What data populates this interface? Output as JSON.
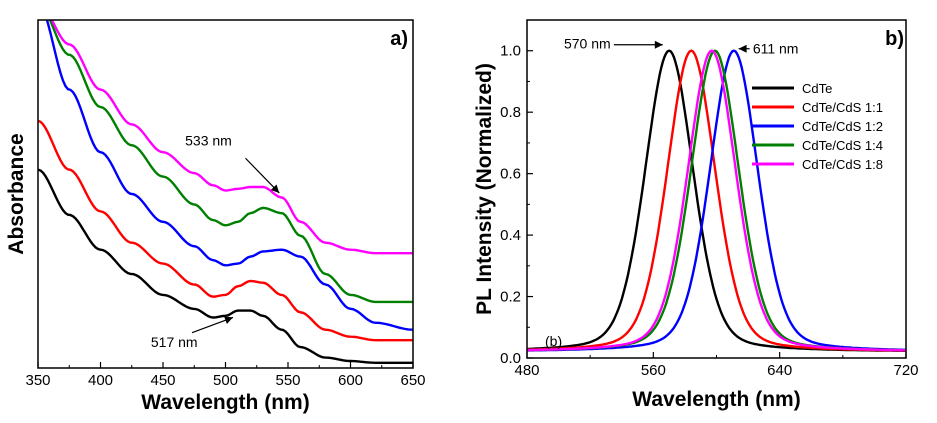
{
  "chart_data": [
    {
      "type": "line",
      "panel_label": "a)",
      "xlabel": "Wavelength (nm)",
      "ylabel": "Absorbance",
      "xlim": [
        350,
        650
      ],
      "ylim": [
        0,
        1
      ],
      "y_ticks_shown": false,
      "x_ticks": [
        350,
        400,
        450,
        500,
        550,
        600,
        650
      ],
      "x_tick_labels": [
        "350",
        "400",
        "450",
        "500",
        "550",
        "600",
        "650"
      ],
      "annotations": [
        {
          "text": "533 nm",
          "x": 533
        },
        {
          "text": "517 nm",
          "x": 517
        }
      ],
      "series": [
        {
          "name": "CdTe",
          "color": "#000000",
          "x": [
            350,
            375,
            400,
            425,
            450,
            475,
            490,
            500,
            510,
            520,
            530,
            545,
            560,
            580,
            600,
            620,
            650
          ],
          "values": [
            0.57,
            0.44,
            0.34,
            0.27,
            0.21,
            0.17,
            0.145,
            0.15,
            0.165,
            0.165,
            0.15,
            0.11,
            0.06,
            0.03,
            0.02,
            0.015,
            0.015
          ]
        },
        {
          "name": "CdTe/CdS 1:1",
          "color": "#ff0000",
          "x": [
            350,
            375,
            400,
            425,
            450,
            475,
            490,
            500,
            510,
            520,
            530,
            545,
            560,
            580,
            600,
            620,
            650
          ],
          "values": [
            0.71,
            0.57,
            0.45,
            0.36,
            0.3,
            0.24,
            0.205,
            0.21,
            0.235,
            0.25,
            0.245,
            0.21,
            0.16,
            0.11,
            0.09,
            0.08,
            0.08
          ]
        },
        {
          "name": "CdTe/CdS 1:2",
          "color": "#0000ff",
          "x": [
            350,
            375,
            400,
            425,
            450,
            475,
            490,
            500,
            510,
            520,
            530,
            545,
            560,
            580,
            600,
            620,
            650
          ],
          "values": [
            1.05,
            0.8,
            0.62,
            0.5,
            0.42,
            0.35,
            0.31,
            0.295,
            0.3,
            0.32,
            0.335,
            0.34,
            0.32,
            0.24,
            0.17,
            0.13,
            0.11
          ]
        },
        {
          "name": "CdTe/CdS 1:4",
          "color": "#008000",
          "x": [
            350,
            375,
            400,
            425,
            450,
            475,
            490,
            500,
            510,
            520,
            530,
            545,
            560,
            580,
            600,
            620,
            650
          ],
          "values": [
            1.05,
            0.9,
            0.75,
            0.64,
            0.55,
            0.47,
            0.425,
            0.41,
            0.42,
            0.445,
            0.46,
            0.445,
            0.38,
            0.27,
            0.21,
            0.19,
            0.19
          ]
        },
        {
          "name": "CdTe/CdS 1:8",
          "color": "#ff00ff",
          "x": [
            350,
            375,
            400,
            425,
            450,
            475,
            490,
            500,
            510,
            520,
            530,
            545,
            560,
            580,
            600,
            620,
            650
          ],
          "values": [
            1.05,
            0.93,
            0.8,
            0.7,
            0.62,
            0.56,
            0.525,
            0.51,
            0.515,
            0.52,
            0.52,
            0.49,
            0.42,
            0.36,
            0.34,
            0.33,
            0.33
          ]
        }
      ]
    },
    {
      "type": "line",
      "panel_label": "b)",
      "inner_label": "(b)",
      "xlabel": "Wavelength (nm)",
      "ylabel": "PL Intensity (Normalized)",
      "xlim": [
        480,
        720
      ],
      "ylim": [
        0,
        1.1
      ],
      "x_ticks": [
        480,
        560,
        640,
        720
      ],
      "x_tick_labels": [
        "480",
        "560",
        "640",
        "720"
      ],
      "y_ticks": [
        0.0,
        0.2,
        0.4,
        0.6,
        0.8,
        1.0
      ],
      "y_tick_labels": [
        "0.0",
        "0.2",
        "0.4",
        "0.6",
        "0.8",
        "1.0"
      ],
      "annotations": [
        {
          "text": "570 nm",
          "x": 570
        },
        {
          "text": "611 nm",
          "x": 611
        }
      ],
      "legend": {
        "position": "right"
      },
      "series": [
        {
          "name": "CdTe",
          "color": "#000000",
          "peak": 570,
          "fwhm": 36,
          "baseline": 0.02
        },
        {
          "name": "CdTe/CdS 1:1",
          "color": "#ff0000",
          "peak": 584,
          "fwhm": 36,
          "baseline": 0.02
        },
        {
          "name": "CdTe/CdS 1:2",
          "color": "#0000ff",
          "peak": 611,
          "fwhm": 36,
          "baseline": 0.02
        },
        {
          "name": "CdTe/CdS 1:4",
          "color": "#008000",
          "peak": 599,
          "fwhm": 36,
          "baseline": 0.02
        },
        {
          "name": "CdTe/CdS 1:8",
          "color": "#ff00ff",
          "peak": 597,
          "fwhm": 36,
          "baseline": 0.02
        }
      ]
    }
  ]
}
